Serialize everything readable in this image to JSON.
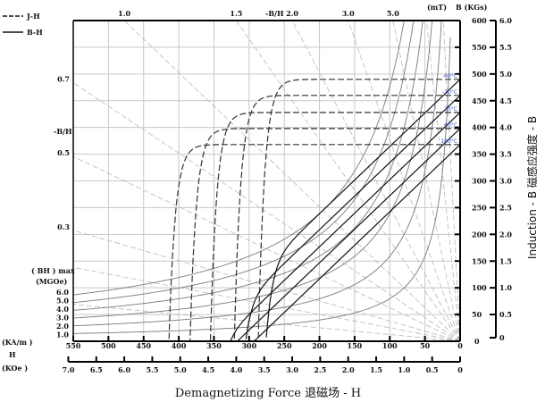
{
  "chart_data": {
    "type": "line",
    "legend": {
      "placement": "top-left",
      "items": [
        {
          "label": "J-H",
          "style": "dashed"
        },
        {
          "label": "B-H",
          "style": "solid"
        }
      ]
    },
    "x_axis": {
      "label": "H",
      "unit": "(KA/m )",
      "range": [
        550,
        0
      ],
      "ticks": [
        "550",
        "500",
        "450",
        "400",
        "350",
        "300",
        "250",
        "200",
        "150",
        "100",
        "50",
        "0"
      ]
    },
    "x2_axis": {
      "unit": "(KOe )",
      "range": [
        7.0,
        0
      ],
      "ticks": [
        "7.0",
        "6.5",
        "6.0",
        "5.5",
        "5.0",
        "4.5",
        "4.0",
        "3.5",
        "3.0",
        "2.5",
        "2.0",
        "1.5",
        "1.0",
        "0.5",
        "0"
      ]
    },
    "y_axis": {
      "unit": "(mT)",
      "range": [
        0,
        600
      ],
      "ticks": [
        "0",
        "50",
        "100",
        "150",
        "200",
        "250",
        "300",
        "350",
        "400",
        "450",
        "500",
        "550",
        "600"
      ]
    },
    "y2_axis": {
      "unit": "B  (KGs)",
      "range": [
        0,
        6.0
      ],
      "ticks": [
        "0",
        "0.5",
        "1.0",
        "1.5",
        "2.0",
        "2.5",
        "3.0",
        "3.5",
        "4.0",
        "4.5",
        "5.0",
        "5.5",
        "6.0"
      ]
    },
    "xlabel": "Demagnetizing Force  退磁场 - H",
    "ylabel": "Induction - B  磁感应强度 - B",
    "grid": true,
    "series": [
      {
        "name": "-60°C",
        "Br_mT": 490,
        "Hcj_kAm": 287
      },
      {
        "name": "-20°C",
        "Br_mT": 460,
        "Hcj_kAm": 321
      },
      {
        "name": "20°C",
        "Br_mT": 428,
        "Hcj_kAm": 355
      },
      {
        "name": "60°C",
        "Br_mT": 398,
        "Hcj_kAm": 384
      },
      {
        "name": "100°C",
        "Br_mT": 368,
        "Hcj_kAm": 414
      }
    ],
    "bhmax": {
      "label": "( BH ) max",
      "unit": "(MGOe)",
      "values": [
        "6.0",
        "5.0",
        "4.0",
        "3.0",
        "2.0",
        "1.0"
      ]
    },
    "permeance": {
      "label": "-B/H",
      "lines": [
        0.1,
        0.2,
        0.3,
        0.5,
        0.7,
        1.0,
        1.5,
        2.0,
        3.0,
        5.0,
        10,
        20
      ],
      "top_labels": [
        "1.0",
        "1.5",
        "2.0",
        "3.0",
        "5.0"
      ],
      "left_labels": [
        "0.7",
        "0.5",
        "0.3"
      ]
    },
    "colors": {
      "temperature_label": "#3a4fc0",
      "grid": "#c8c8c8",
      "bhmax_curves": "#7a7a7a",
      "load_lines": "#b8b8b8",
      "curves": "#111111"
    }
  }
}
